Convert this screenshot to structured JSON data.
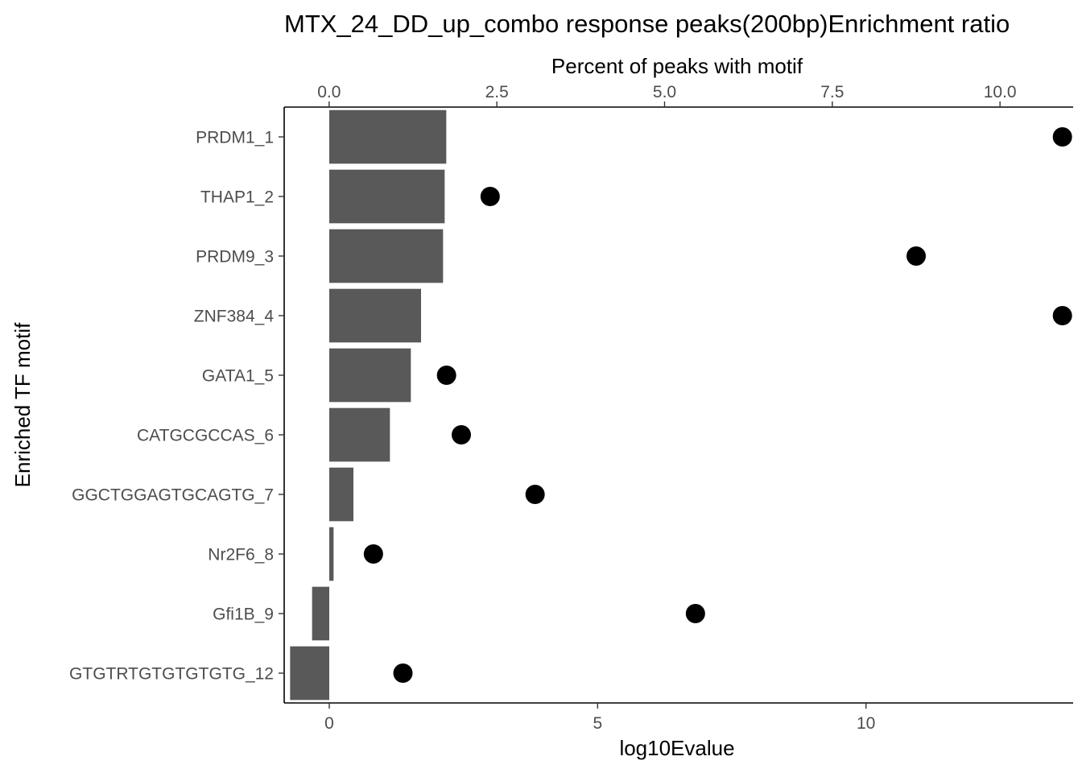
{
  "chart_data": {
    "type": "bar",
    "title": "MTX_24_DD_up_combo response peaks(200bp)Enrichment ratio",
    "ylabel": "Enriched TF motif",
    "xlabel_bottom": "log10Evalue",
    "xlabel_top": "Percent of peaks with motif",
    "categories": [
      "PRDM1_1",
      "THAP1_2",
      "PRDM9_3",
      "ZNF384_4",
      "GATA1_5",
      "CATGCGCCAS_6",
      "GGCTGGAGTGCAGTG_7",
      "Nr2F6_8",
      "Gfi1B_9",
      "GTGTRTGTGTGTGTG_12"
    ],
    "series": [
      {
        "type": "bar",
        "axis": "bottom",
        "values": [
          2.18,
          2.15,
          2.12,
          1.71,
          1.52,
          1.13,
          0.45,
          0.08,
          -0.32,
          -0.73
        ],
        "color": "#595959"
      },
      {
        "type": "scatter",
        "axis": "top",
        "values": [
          10.93,
          2.4,
          8.75,
          10.93,
          1.75,
          1.97,
          3.07,
          0.66,
          5.46,
          1.1
        ],
        "color": "#000000"
      }
    ],
    "xlim_bottom": [
      -0.84,
      13.86
    ],
    "xticks_bottom": [
      "0",
      "5",
      "10"
    ],
    "xtick_values_bottom": [
      0,
      5,
      10
    ],
    "xlim_top": [
      -0.67,
      11.09
    ],
    "xticks_top": [
      "0.0",
      "2.5",
      "5.0",
      "7.5",
      "10.0"
    ],
    "xtick_values_top": [
      0,
      2.5,
      5,
      7.5,
      10
    ],
    "grid": false,
    "legend": "none"
  }
}
